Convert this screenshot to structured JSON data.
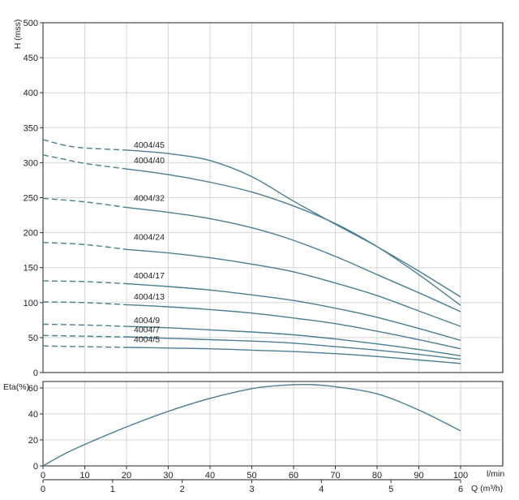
{
  "chart_data": [
    {
      "type": "line",
      "ylabel": "H (mss)",
      "xlim": [
        0,
        100
      ],
      "ylim": [
        0,
        500
      ],
      "y_ticks": [
        "0",
        "50",
        "100",
        "150",
        "200",
        "250",
        "300",
        "350",
        "400",
        "450",
        "500"
      ],
      "grid": true,
      "line_color": "#4a7e91",
      "series": [
        {
          "name": "4004/45",
          "dashed_until": 20,
          "points": [
            [
              0,
              333
            ],
            [
              5,
              325
            ],
            [
              10,
              321
            ],
            [
              20,
              318
            ],
            [
              30,
              313
            ],
            [
              40,
              303
            ],
            [
              50,
              280
            ],
            [
              60,
              245
            ],
            [
              70,
              212
            ],
            [
              80,
              180
            ],
            [
              90,
              145
            ],
            [
              100,
              108
            ]
          ]
        },
        {
          "name": "4004/40",
          "dashed_until": 20,
          "points": [
            [
              0,
              311
            ],
            [
              5,
              305
            ],
            [
              10,
              299
            ],
            [
              20,
              291
            ],
            [
              30,
              283
            ],
            [
              40,
              272
            ],
            [
              50,
              258
            ],
            [
              60,
              238
            ],
            [
              70,
              213
            ],
            [
              80,
              180
            ],
            [
              90,
              140
            ],
            [
              100,
              96
            ]
          ]
        },
        {
          "name": "4004/32",
          "dashed_until": 20,
          "points": [
            [
              0,
              249
            ],
            [
              10,
              244
            ],
            [
              20,
              236
            ],
            [
              30,
              229
            ],
            [
              40,
              220
            ],
            [
              50,
              207
            ],
            [
              60,
              189
            ],
            [
              70,
              166
            ],
            [
              80,
              140
            ],
            [
              90,
              114
            ],
            [
              100,
              87
            ]
          ]
        },
        {
          "name": "4004/24",
          "dashed_until": 20,
          "points": [
            [
              0,
              186
            ],
            [
              10,
              183
            ],
            [
              20,
              176
            ],
            [
              30,
              171
            ],
            [
              40,
              164
            ],
            [
              50,
              155
            ],
            [
              60,
              144
            ],
            [
              70,
              128
            ],
            [
              80,
              110
            ],
            [
              90,
              88
            ],
            [
              100,
              66
            ]
          ]
        },
        {
          "name": "4004/17",
          "dashed_until": 20,
          "points": [
            [
              0,
              131
            ],
            [
              10,
              130
            ],
            [
              20,
              127
            ],
            [
              30,
              123
            ],
            [
              40,
              118
            ],
            [
              50,
              111
            ],
            [
              60,
              103
            ],
            [
              70,
              92
            ],
            [
              80,
              79
            ],
            [
              90,
              63
            ],
            [
              100,
              46
            ]
          ]
        },
        {
          "name": "4004/13",
          "dashed_until": 20,
          "points": [
            [
              0,
              101
            ],
            [
              10,
              100
            ],
            [
              20,
              97
            ],
            [
              30,
              94
            ],
            [
              40,
              90
            ],
            [
              50,
              85
            ],
            [
              60,
              78
            ],
            [
              70,
              70
            ],
            [
              80,
              59
            ],
            [
              90,
              47
            ],
            [
              100,
              34
            ]
          ]
        },
        {
          "name": "4004/9",
          "dashed_until": 20,
          "points": [
            [
              0,
              69
            ],
            [
              10,
              68
            ],
            [
              20,
              66
            ],
            [
              30,
              64
            ],
            [
              40,
              61
            ],
            [
              50,
              58
            ],
            [
              60,
              54
            ],
            [
              70,
              48
            ],
            [
              80,
              41
            ],
            [
              90,
              33
            ],
            [
              100,
              24
            ]
          ]
        },
        {
          "name": "4004/7",
          "dashed_until": 20,
          "points": [
            [
              0,
              53
            ],
            [
              10,
              52
            ],
            [
              20,
              51
            ],
            [
              30,
              49
            ],
            [
              40,
              47
            ],
            [
              50,
              45
            ],
            [
              60,
              42
            ],
            [
              70,
              37
            ],
            [
              80,
              32
            ],
            [
              90,
              26
            ],
            [
              100,
              19
            ]
          ]
        },
        {
          "name": "4004/5",
          "dashed_until": 20,
          "points": [
            [
              0,
              38
            ],
            [
              10,
              37
            ],
            [
              20,
              36
            ],
            [
              30,
              35
            ],
            [
              40,
              34
            ],
            [
              50,
              32
            ],
            [
              60,
              30
            ],
            [
              70,
              27
            ],
            [
              80,
              23
            ],
            [
              90,
              18
            ],
            [
              100,
              13
            ]
          ]
        }
      ]
    },
    {
      "type": "line",
      "ylabel": "Eta(%)",
      "xlabel": "l/min",
      "xlabel2": "Q (m³/h)",
      "xlim": [
        0,
        100
      ],
      "ylim": [
        0,
        65
      ],
      "y_ticks": [
        "0",
        "20",
        "40",
        "60"
      ],
      "x_ticks": [
        "0",
        "10",
        "20",
        "30",
        "40",
        "50",
        "60",
        "70",
        "80",
        "90",
        "100"
      ],
      "x2_ticks": [
        {
          "v": 0,
          "label": "0"
        },
        {
          "v": 16.67,
          "label": "1"
        },
        {
          "v": 33.33,
          "label": "2"
        },
        {
          "v": 50,
          "label": "3"
        },
        {
          "v": 66.67,
          "label": "4"
        },
        {
          "v": 83.33,
          "label": "5"
        },
        {
          "v": 100,
          "label": "6"
        }
      ],
      "grid": true,
      "line_color": "#4a7e91",
      "series": [
        {
          "points": [
            [
              0,
              0
            ],
            [
              5,
              9
            ],
            [
              10,
              16.5
            ],
            [
              20,
              30
            ],
            [
              30,
              42
            ],
            [
              40,
              52
            ],
            [
              50,
              59.5
            ],
            [
              55,
              61.5
            ],
            [
              60,
              62.5
            ],
            [
              62,
              62.7
            ],
            [
              65,
              62.5
            ],
            [
              70,
              61
            ],
            [
              80,
              55.5
            ],
            [
              90,
              43
            ],
            [
              100,
              27
            ]
          ]
        }
      ]
    }
  ]
}
